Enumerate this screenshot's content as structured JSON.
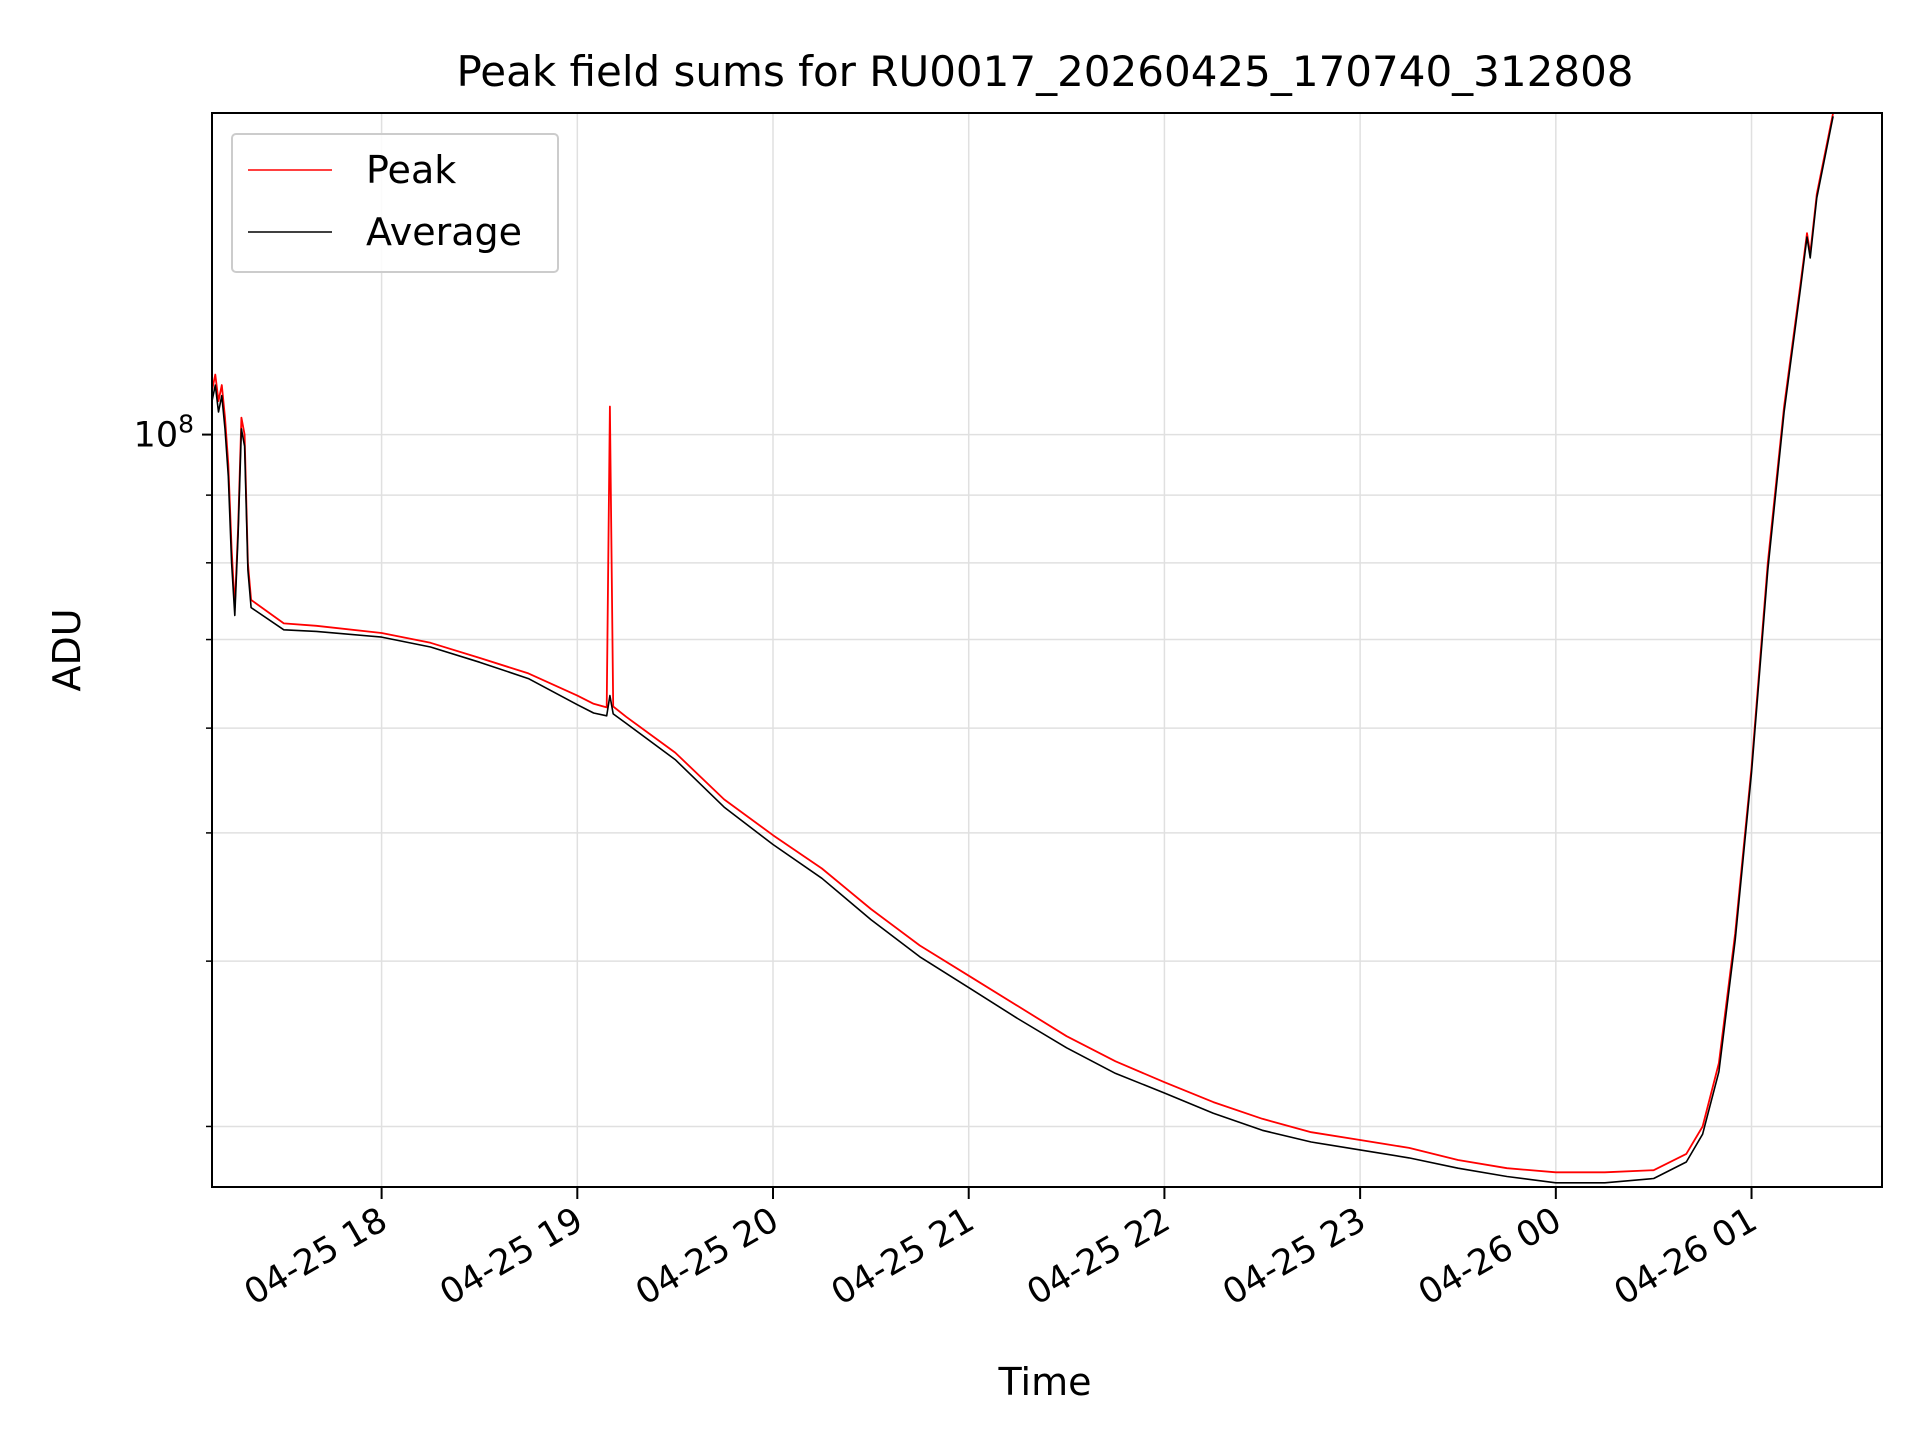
{
  "chart_data": {
    "type": "line",
    "title": "Peak field sums for RU0017_20260425_170740_312808",
    "xlabel": "Time",
    "ylabel": "ADU",
    "y_scale": "log",
    "ylim": [
      27000000,
      175000000
    ],
    "x_range": [
      "04-25 17:08",
      "04-26 01:40"
    ],
    "x_ticks": [
      "04-25 18",
      "04-25 19",
      "04-25 20",
      "04-25 21",
      "04-25 22",
      "04-25 23",
      "04-26 00",
      "04-26 01"
    ],
    "y_tick_label": {
      "base": "10",
      "exponent": "8",
      "value": 100000000
    },
    "grid": true,
    "legend_position": "top-left",
    "colors": {
      "peak": "#ff0000",
      "average": "#000000",
      "grid": "#e0e0e0"
    },
    "series": [
      {
        "name": "Peak",
        "color": "#ff0000",
        "points": [
          [
            "04-25 17:08",
            108000000
          ],
          [
            "04-25 17:09",
            111000000
          ],
          [
            "04-25 17:10",
            106000000
          ],
          [
            "04-25 17:11",
            109000000
          ],
          [
            "04-25 17:12",
            103000000
          ],
          [
            "04-25 17:13",
            95000000
          ],
          [
            "04-25 17:14",
            82000000
          ],
          [
            "04-25 17:15",
            74000000
          ],
          [
            "04-25 17:16",
            85000000
          ],
          [
            "04-25 17:17",
            103000000
          ],
          [
            "04-25 17:18",
            100000000
          ],
          [
            "04-25 17:19",
            80000000
          ],
          [
            "04-25 17:20",
            75000000
          ],
          [
            "04-25 17:30",
            72000000
          ],
          [
            "04-25 17:40",
            71700000
          ],
          [
            "04-25 18:00",
            70800000
          ],
          [
            "04-25 18:15",
            69600000
          ],
          [
            "04-25 18:30",
            67800000
          ],
          [
            "04-25 18:45",
            66000000
          ],
          [
            "04-25 19:00",
            63500000
          ],
          [
            "04-25 19:05",
            62600000
          ],
          [
            "04-25 19:09",
            62200000
          ],
          [
            "04-25 19:10",
            105000000
          ],
          [
            "04-25 19:11",
            62300000
          ],
          [
            "04-25 19:15",
            61200000
          ],
          [
            "04-25 19:30",
            57500000
          ],
          [
            "04-25 19:45",
            53000000
          ],
          [
            "04-25 20:00",
            49800000
          ],
          [
            "04-25 20:15",
            47000000
          ],
          [
            "04-25 20:30",
            43800000
          ],
          [
            "04-25 20:45",
            41100000
          ],
          [
            "04-25 21:00",
            39000000
          ],
          [
            "04-25 21:15",
            37000000
          ],
          [
            "04-25 21:30",
            35100000
          ],
          [
            "04-25 21:45",
            33600000
          ],
          [
            "04-25 22:00",
            32400000
          ],
          [
            "04-25 22:15",
            31300000
          ],
          [
            "04-25 22:30",
            30400000
          ],
          [
            "04-25 22:45",
            29700000
          ],
          [
            "04-25 23:00",
            29300000
          ],
          [
            "04-25 23:15",
            28900000
          ],
          [
            "04-25 23:30",
            28300000
          ],
          [
            "04-25 23:45",
            27900000
          ],
          [
            "04-26 00:00",
            27700000
          ],
          [
            "04-26 00:15",
            27700000
          ],
          [
            "04-26 00:30",
            27800000
          ],
          [
            "04-26 00:40",
            28600000
          ],
          [
            "04-26 00:45",
            30000000
          ],
          [
            "04-26 00:50",
            33500000
          ],
          [
            "04-26 00:55",
            42000000
          ],
          [
            "04-26 01:00",
            56000000
          ],
          [
            "04-26 01:05",
            80000000
          ],
          [
            "04-26 01:10",
            105000000
          ],
          [
            "04-26 01:15",
            130000000
          ],
          [
            "04-26 01:17",
            142000000
          ],
          [
            "04-26 01:18",
            137000000
          ],
          [
            "04-26 01:20",
            152000000
          ],
          [
            "04-26 01:25",
            175000000
          ]
        ]
      },
      {
        "name": "Average",
        "color": "#000000",
        "points": [
          [
            "04-25 17:08",
            106000000
          ],
          [
            "04-25 17:09",
            109000000
          ],
          [
            "04-25 17:10",
            104000000
          ],
          [
            "04-25 17:11",
            107000000
          ],
          [
            "04-25 17:12",
            101000000
          ],
          [
            "04-25 17:13",
            93000000
          ],
          [
            "04-25 17:14",
            80000000
          ],
          [
            "04-25 17:15",
            73000000
          ],
          [
            "04-25 17:16",
            84000000
          ],
          [
            "04-25 17:17",
            101000000
          ],
          [
            "04-25 17:18",
            98000000
          ],
          [
            "04-25 17:19",
            79000000
          ],
          [
            "04-25 17:20",
            74000000
          ],
          [
            "04-25 17:30",
            71200000
          ],
          [
            "04-25 17:40",
            71000000
          ],
          [
            "04-25 18:00",
            70300000
          ],
          [
            "04-25 18:15",
            69100000
          ],
          [
            "04-25 18:30",
            67300000
          ],
          [
            "04-25 18:45",
            65400000
          ],
          [
            "04-25 19:00",
            62500000
          ],
          [
            "04-25 19:05",
            61600000
          ],
          [
            "04-25 19:09",
            61300000
          ],
          [
            "04-25 19:10",
            63500000
          ],
          [
            "04-25 19:11",
            61500000
          ],
          [
            "04-25 19:15",
            60500000
          ],
          [
            "04-25 19:30",
            56800000
          ],
          [
            "04-25 19:45",
            52300000
          ],
          [
            "04-25 20:00",
            49000000
          ],
          [
            "04-25 20:15",
            46200000
          ],
          [
            "04-25 20:30",
            43000000
          ],
          [
            "04-25 20:45",
            40300000
          ],
          [
            "04-25 21:00",
            38200000
          ],
          [
            "04-25 21:15",
            36200000
          ],
          [
            "04-25 21:30",
            34400000
          ],
          [
            "04-25 21:45",
            32900000
          ],
          [
            "04-25 22:00",
            31800000
          ],
          [
            "04-25 22:15",
            30700000
          ],
          [
            "04-25 22:30",
            29800000
          ],
          [
            "04-25 22:45",
            29200000
          ],
          [
            "04-25 23:00",
            28800000
          ],
          [
            "04-25 23:15",
            28400000
          ],
          [
            "04-25 23:30",
            27900000
          ],
          [
            "04-25 23:45",
            27500000
          ],
          [
            "04-26 00:00",
            27200000
          ],
          [
            "04-26 00:15",
            27200000
          ],
          [
            "04-26 00:30",
            27400000
          ],
          [
            "04-26 00:40",
            28200000
          ],
          [
            "04-26 00:45",
            29600000
          ],
          [
            "04-26 00:50",
            33000000
          ],
          [
            "04-26 00:55",
            41500000
          ],
          [
            "04-26 01:00",
            55500000
          ],
          [
            "04-26 01:05",
            79000000
          ],
          [
            "04-26 01:10",
            104000000
          ],
          [
            "04-26 01:15",
            129000000
          ],
          [
            "04-26 01:17",
            141000000
          ],
          [
            "04-26 01:18",
            136000000
          ],
          [
            "04-26 01:20",
            151000000
          ],
          [
            "04-26 01:25",
            174000000
          ]
        ]
      }
    ]
  }
}
